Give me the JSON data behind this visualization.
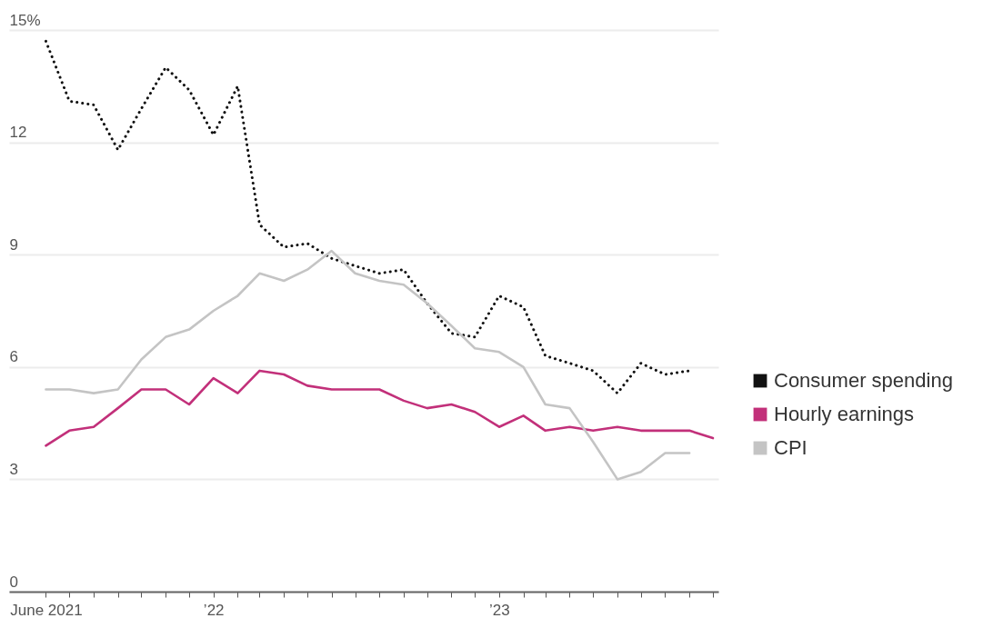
{
  "chart_data": {
    "type": "line",
    "x": [
      "2021-06",
      "2021-07",
      "2021-08",
      "2021-09",
      "2021-10",
      "2021-11",
      "2021-12",
      "2022-01",
      "2022-02",
      "2022-03",
      "2022-04",
      "2022-05",
      "2022-06",
      "2022-07",
      "2022-08",
      "2022-09",
      "2022-10",
      "2022-11",
      "2022-12",
      "2023-01",
      "2023-02",
      "2023-03",
      "2023-04",
      "2023-05",
      "2023-06",
      "2023-07",
      "2023-08",
      "2023-09",
      "2023-10"
    ],
    "series": [
      {
        "name": "Consumer spending",
        "color": "#111111",
        "line_style": "dotted",
        "values": [
          14.7,
          13.1,
          13.0,
          11.8,
          12.9,
          14.0,
          13.4,
          12.2,
          13.5,
          9.8,
          9.2,
          9.3,
          8.9,
          8.7,
          8.5,
          8.6,
          7.7,
          6.9,
          6.8,
          7.9,
          7.6,
          6.3,
          6.1,
          5.9,
          5.3,
          6.1,
          5.8,
          5.9,
          null
        ]
      },
      {
        "name": "Hourly earnings",
        "color": "#c2307a",
        "line_style": "solid",
        "values": [
          3.9,
          4.3,
          4.4,
          4.9,
          5.4,
          5.4,
          5.0,
          5.7,
          5.3,
          5.9,
          5.8,
          5.5,
          5.4,
          5.4,
          5.4,
          5.1,
          4.9,
          5.0,
          4.8,
          4.4,
          4.7,
          4.3,
          4.4,
          4.3,
          4.4,
          4.3,
          4.3,
          4.3,
          4.1
        ]
      },
      {
        "name": "CPI",
        "color": "#c4c4c4",
        "line_style": "solid",
        "values": [
          5.4,
          5.4,
          5.3,
          5.4,
          6.2,
          6.8,
          7.0,
          7.5,
          7.9,
          8.5,
          8.3,
          8.6,
          9.1,
          8.5,
          8.3,
          8.2,
          7.7,
          7.1,
          6.5,
          6.4,
          6.0,
          5.0,
          4.9,
          4.0,
          3.0,
          3.2,
          3.7,
          3.7,
          null
        ]
      }
    ],
    "xlim": [
      "2021-04-15",
      "2023-10-08"
    ],
    "xticks": [
      {
        "value": "2021-06",
        "label": "June 2021"
      },
      {
        "value": "2021-07",
        "label": null
      },
      {
        "value": "2021-08",
        "label": null
      },
      {
        "value": "2021-09",
        "label": null
      },
      {
        "value": "2021-10",
        "label": null
      },
      {
        "value": "2021-11",
        "label": null
      },
      {
        "value": "2021-12",
        "label": null
      },
      {
        "value": "2022-01",
        "label": "’22"
      },
      {
        "value": "2022-02",
        "label": null
      },
      {
        "value": "2022-03",
        "label": null
      },
      {
        "value": "2022-04",
        "label": null
      },
      {
        "value": "2022-05",
        "label": null
      },
      {
        "value": "2022-06",
        "label": null
      },
      {
        "value": "2022-07",
        "label": null
      },
      {
        "value": "2022-08",
        "label": null
      },
      {
        "value": "2022-09",
        "label": null
      },
      {
        "value": "2022-10",
        "label": null
      },
      {
        "value": "2022-11",
        "label": null
      },
      {
        "value": "2022-12",
        "label": null
      },
      {
        "value": "2023-01",
        "label": "’23"
      },
      {
        "value": "2023-02",
        "label": null
      },
      {
        "value": "2023-03",
        "label": null
      },
      {
        "value": "2023-04",
        "label": null
      },
      {
        "value": "2023-05",
        "label": null
      },
      {
        "value": "2023-06",
        "label": null
      },
      {
        "value": "2023-07",
        "label": null
      },
      {
        "value": "2023-08",
        "label": null
      },
      {
        "value": "2023-09",
        "label": null
      },
      {
        "value": "2023-10",
        "label": null
      }
    ],
    "ylim": [
      0,
      15
    ],
    "yticks": [
      0,
      3,
      6,
      9,
      12,
      {
        "value": 15,
        "label": "15%"
      }
    ],
    "grid": "y",
    "legend": "right"
  }
}
